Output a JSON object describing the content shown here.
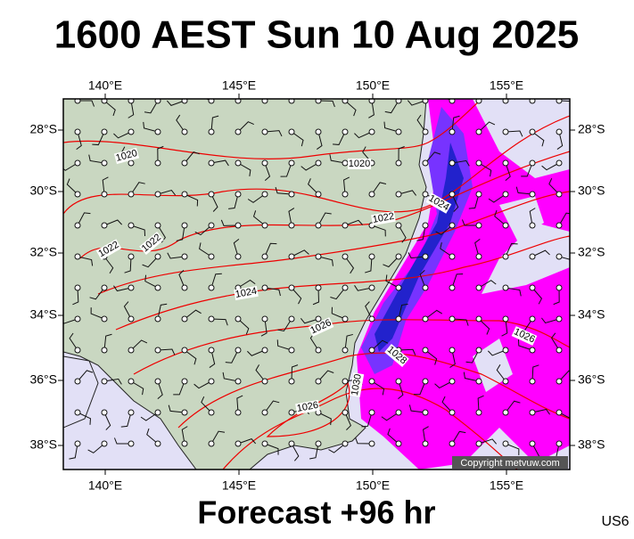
{
  "title": "1600 AEST Sun 10 Aug 2025",
  "footer": "Forecast +96 hr",
  "model": "US6",
  "copyright": "Copyright metvuw.com",
  "lon_labels": [
    "140°E",
    "145°E",
    "150°E",
    "155°E"
  ],
  "lat_labels": [
    "28°S",
    "30°S",
    "32°S",
    "34°S",
    "36°S",
    "38°S"
  ],
  "isobar_labels": [
    "1020",
    "1020",
    "1022",
    "1022",
    "1022",
    "1024",
    "1024",
    "1026",
    "1026",
    "1026",
    "1028",
    "1030"
  ]
}
